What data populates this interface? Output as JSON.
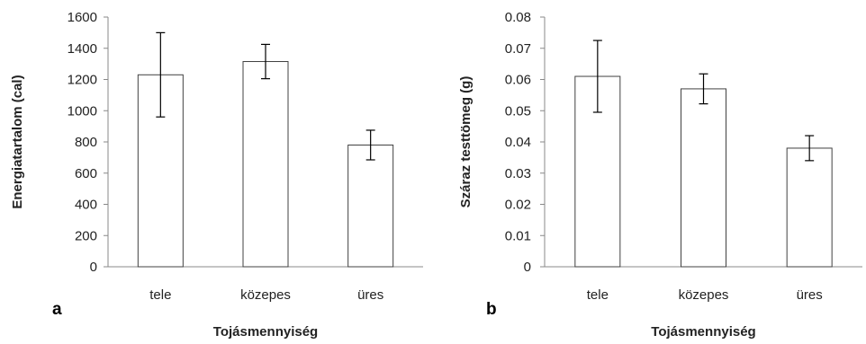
{
  "figure": {
    "colors": {
      "bar_fill": "#ffffff",
      "bar_stroke": "#404040",
      "axis": "#888888",
      "text": "#222222"
    }
  },
  "chart_data": [
    {
      "type": "bar",
      "panel_label": "a",
      "categories": [
        "tele",
        "közepes",
        "üres"
      ],
      "values": [
        1230,
        1315,
        780
      ],
      "error": [
        270,
        110,
        95
      ],
      "xlabel": "Tojásmennyiség",
      "ylabel": "Energiatartalom (cal)",
      "ylim": [
        0,
        1600
      ],
      "yticks": [
        "0",
        "200",
        "400",
        "600",
        "800",
        "1000",
        "1200",
        "1400",
        "1600"
      ],
      "grid": false
    },
    {
      "type": "bar",
      "panel_label": "b",
      "categories": [
        "tele",
        "közepes",
        "üres"
      ],
      "values": [
        0.061,
        0.057,
        0.038
      ],
      "error": [
        0.0115,
        0.0048,
        0.004
      ],
      "xlabel": "Tojásmennyiség",
      "ylabel": "Száraz testtömeg (g)",
      "ylim": [
        0,
        0.08
      ],
      "yticks": [
        "0",
        "0.01",
        "0.02",
        "0.03",
        "0.04",
        "0.05",
        "0.06",
        "0.07",
        "0.08"
      ],
      "grid": false
    }
  ]
}
